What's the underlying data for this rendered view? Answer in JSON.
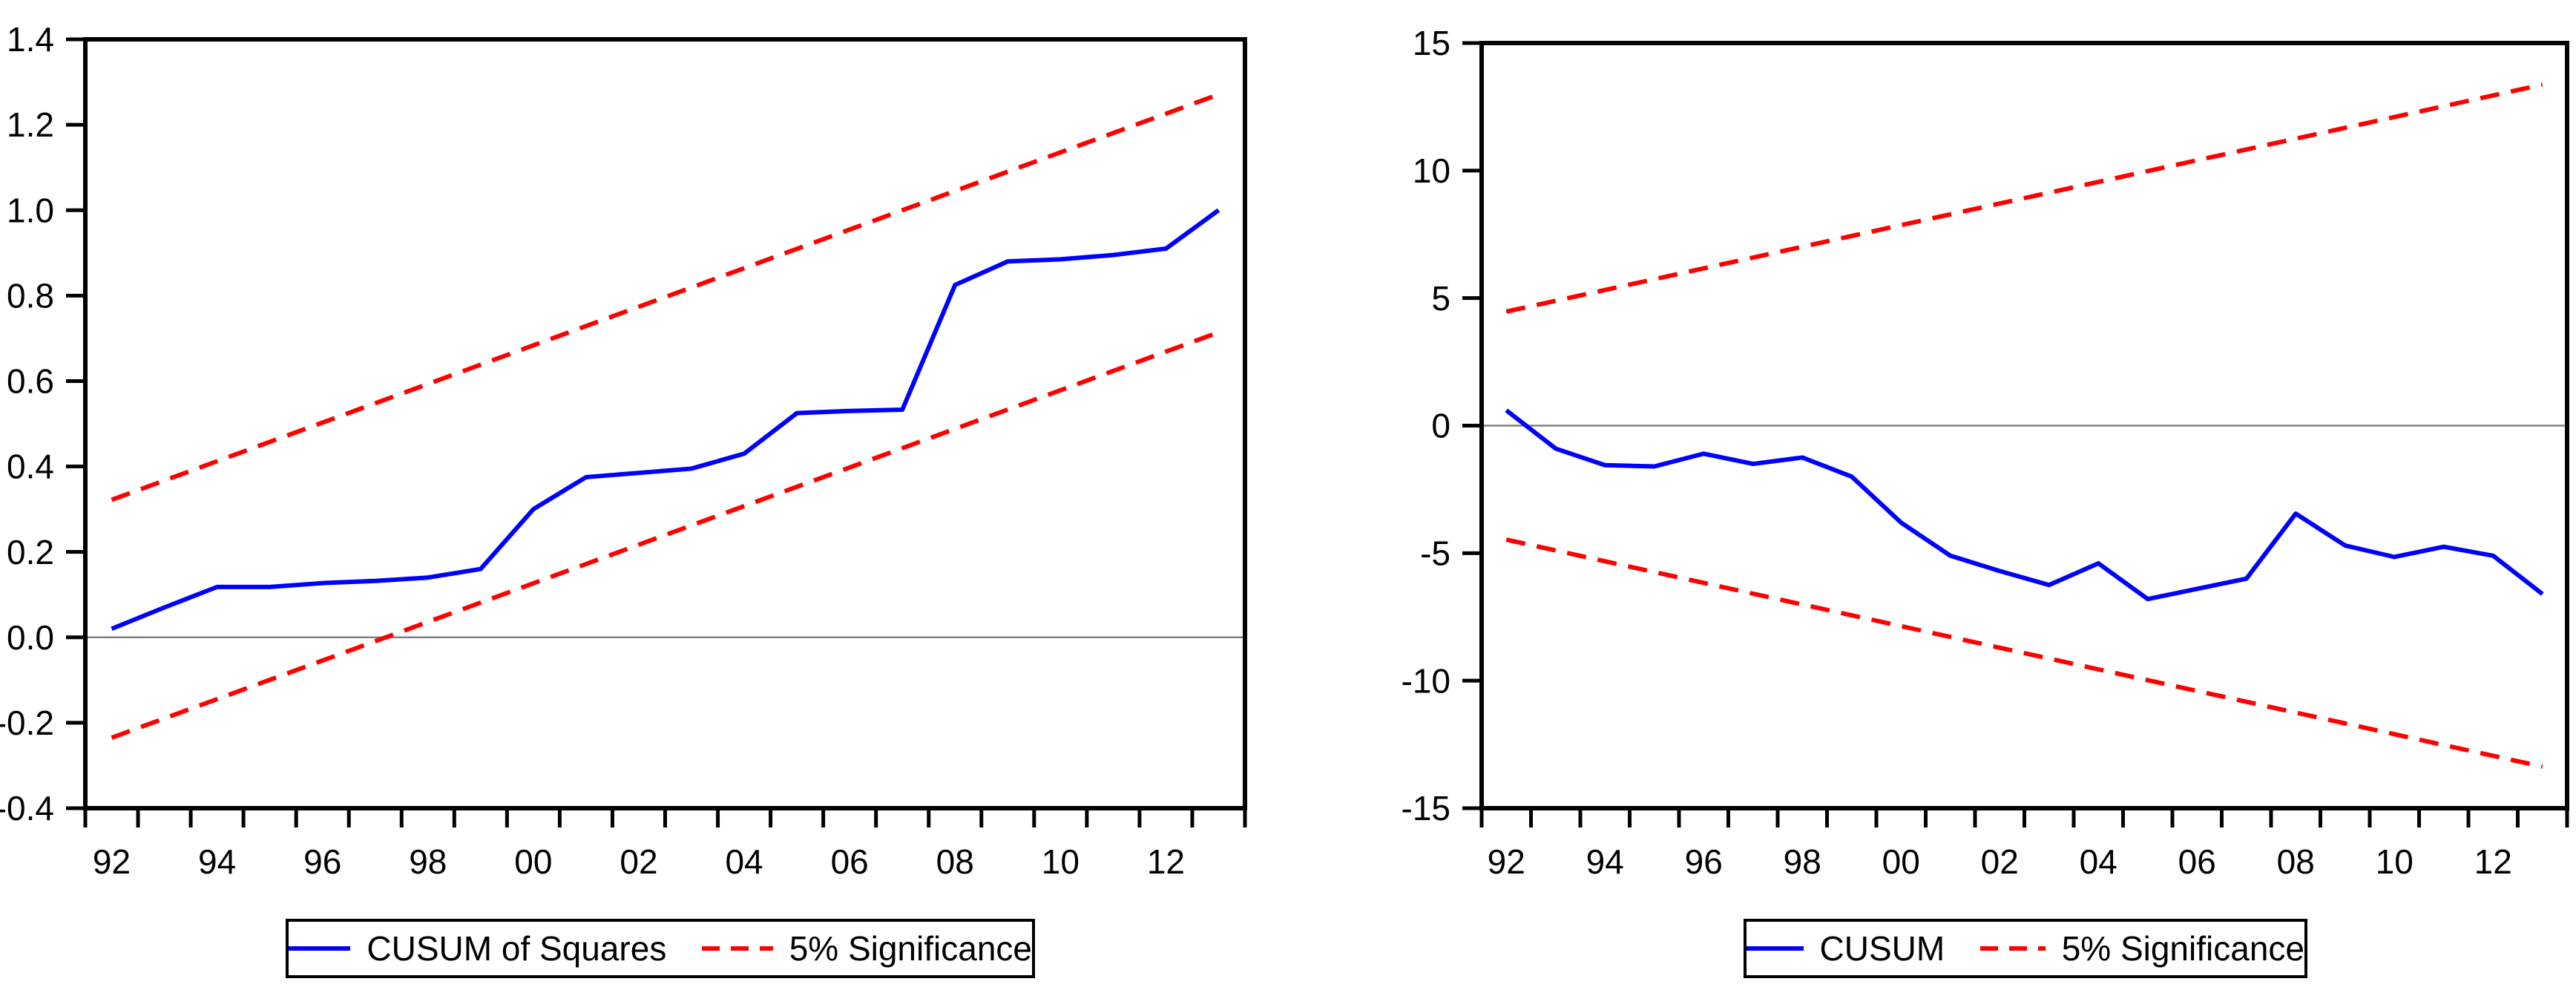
{
  "background": "#ffffff",
  "colors": {
    "series": "#0000ff",
    "significance": "#ff0000",
    "axis": "#000000",
    "zero_line": "#808080"
  },
  "chart_data": [
    {
      "type": "line",
      "name": "cusum-of-squares",
      "title": "",
      "xlabel": "",
      "ylabel": "",
      "years": [
        1992,
        1993,
        1994,
        1995,
        1996,
        1997,
        1998,
        1999,
        2000,
        2001,
        2002,
        2003,
        2004,
        2005,
        2006,
        2007,
        2008,
        2009,
        2010,
        2011,
        2012,
        2013
      ],
      "x_ticks": [
        {
          "year": 1992,
          "label": "92"
        },
        {
          "year": 1994,
          "label": "94"
        },
        {
          "year": 1996,
          "label": "96"
        },
        {
          "year": 1998,
          "label": "98"
        },
        {
          "year": 2000,
          "label": "00"
        },
        {
          "year": 2002,
          "label": "02"
        },
        {
          "year": 2004,
          "label": "04"
        },
        {
          "year": 2006,
          "label": "06"
        },
        {
          "year": 2008,
          "label": "08"
        },
        {
          "year": 2010,
          "label": "10"
        },
        {
          "year": 2012,
          "label": "12"
        }
      ],
      "series": [
        {
          "name": "CUSUM of Squares",
          "color": "#0000ff",
          "values": [
            0.02,
            0.07,
            0.118,
            0.118,
            0.127,
            0.132,
            0.14,
            0.16,
            0.3,
            0.375,
            0.385,
            0.395,
            0.43,
            0.525,
            0.53,
            0.533,
            0.825,
            0.88,
            0.885,
            0.895,
            0.91,
            1.0
          ]
        }
      ],
      "significance_label": "5% Significance",
      "bands": {
        "upper_start": 0.322,
        "upper_end": 1.271,
        "lower_start": -0.235,
        "lower_end": 0.714
      },
      "ylim": [
        -0.4,
        1.4
      ],
      "y_ticks": [
        {
          "value": 1.4,
          "label": "1.4"
        },
        {
          "value": 1.2,
          "label": "1.2"
        },
        {
          "value": 1.0,
          "label": "1.0"
        },
        {
          "value": 0.8,
          "label": "0.8"
        },
        {
          "value": 0.6,
          "label": "0.6"
        },
        {
          "value": 0.4,
          "label": "0.4"
        },
        {
          "value": 0.2,
          "label": "0.2"
        },
        {
          "value": 0.0,
          "label": "0.0"
        },
        {
          "value": -0.2,
          "label": "-0.2"
        },
        {
          "value": -0.4,
          "label": "-0.4"
        }
      ],
      "zero_line": true,
      "grid": false,
      "legend_position": "bottom"
    },
    {
      "type": "line",
      "name": "cusum",
      "title": "",
      "xlabel": "",
      "ylabel": "",
      "years": [
        1992,
        1993,
        1994,
        1995,
        1996,
        1997,
        1998,
        1999,
        2000,
        2001,
        2002,
        2003,
        2004,
        2005,
        2006,
        2007,
        2008,
        2009,
        2010,
        2011,
        2012,
        2013
      ],
      "x_ticks": [
        {
          "year": 1992,
          "label": "92"
        },
        {
          "year": 1994,
          "label": "94"
        },
        {
          "year": 1996,
          "label": "96"
        },
        {
          "year": 1998,
          "label": "98"
        },
        {
          "year": 2000,
          "label": "00"
        },
        {
          "year": 2002,
          "label": "02"
        },
        {
          "year": 2004,
          "label": "04"
        },
        {
          "year": 2006,
          "label": "06"
        },
        {
          "year": 2008,
          "label": "08"
        },
        {
          "year": 2010,
          "label": "10"
        },
        {
          "year": 2012,
          "label": "12"
        }
      ],
      "series": [
        {
          "name": "CUSUM",
          "color": "#0000ff",
          "values": [
            0.6,
            -0.9,
            -1.55,
            -1.6,
            -1.1,
            -1.5,
            -1.25,
            -2.0,
            -3.8,
            -5.1,
            -5.7,
            -6.25,
            -5.4,
            -6.8,
            -6.4,
            -6.0,
            -3.45,
            -4.7,
            -5.15,
            -4.75,
            -5.1,
            -6.6
          ]
        }
      ],
      "significance_label": "5% Significance",
      "bands": {
        "upper_start": 4.47,
        "upper_end": 13.37,
        "lower_start": -4.47,
        "lower_end": -13.37
      },
      "ylim": [
        -15,
        15
      ],
      "y_ticks": [
        {
          "value": 15,
          "label": "15"
        },
        {
          "value": 10,
          "label": "10"
        },
        {
          "value": 5,
          "label": "5"
        },
        {
          "value": 0,
          "label": "0"
        },
        {
          "value": -5,
          "label": "-5"
        },
        {
          "value": -10,
          "label": "-10"
        },
        {
          "value": -15,
          "label": "-15"
        }
      ],
      "zero_line": true,
      "grid": false,
      "legend_position": "bottom"
    }
  ]
}
